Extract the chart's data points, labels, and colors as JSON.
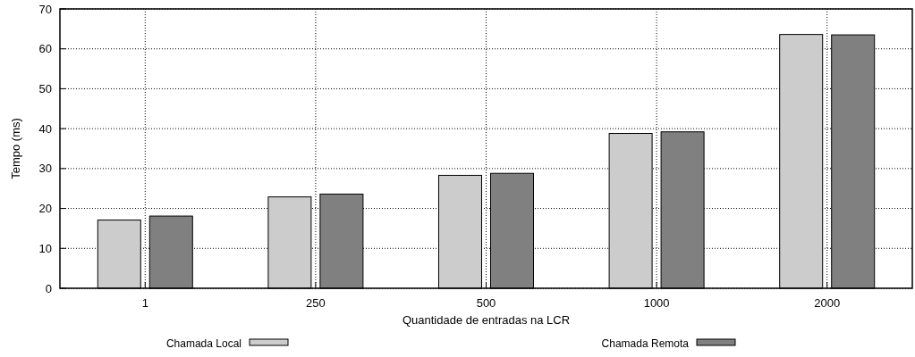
{
  "chart_data": {
    "type": "bar",
    "xlabel": "Quantidade de entradas na LCR",
    "ylabel": "Tempo (ms)",
    "categories": [
      "1",
      "250",
      "500",
      "1000",
      "2000"
    ],
    "series": [
      {
        "name": "Chamada Local",
        "color": "#cccccc",
        "values": [
          17.1,
          22.9,
          28.3,
          38.8,
          63.6
        ]
      },
      {
        "name": "Chamada Remota",
        "color": "#808080",
        "values": [
          18.1,
          23.6,
          28.8,
          39.2,
          63.5
        ]
      }
    ],
    "ylim": [
      0,
      70
    ],
    "yticks": [
      0,
      10,
      20,
      30,
      40,
      50,
      60,
      70
    ],
    "grid": true,
    "legend": "bottom"
  }
}
